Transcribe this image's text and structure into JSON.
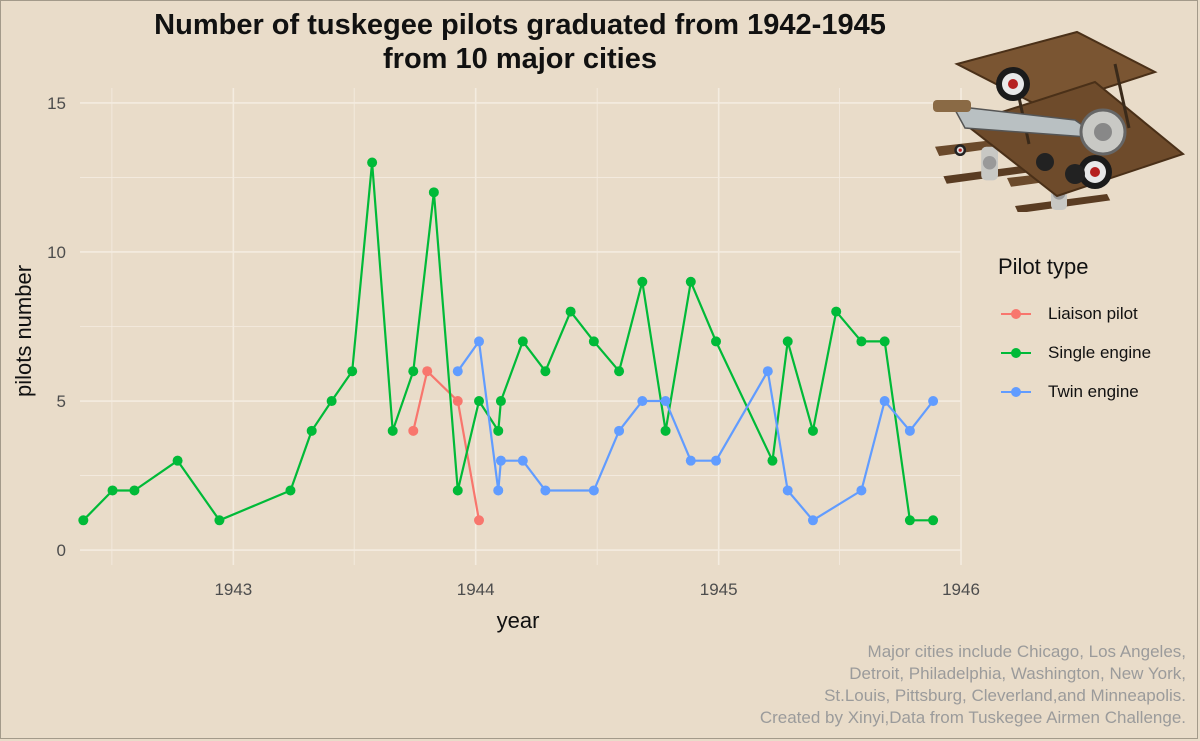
{
  "chart_data": {
    "type": "line",
    "title_lines": [
      "Number of tuskegee pilots graduated from 1942-1945",
      "from 10 major cities"
    ],
    "xlabel": "year",
    "ylabel": "pilots number",
    "xlim": [
      "1942-05-15",
      "1946-01-01"
    ],
    "ylim": [
      -0.5,
      15.5
    ],
    "x_ticks": [
      "1943",
      "1944",
      "1945",
      "1946"
    ],
    "y_ticks": [
      0,
      5,
      10,
      15
    ],
    "grid": true,
    "legend": {
      "title": "Pilot type",
      "placement": "right"
    },
    "series": [
      {
        "name": "Liaison pilot",
        "color": "#F8766D",
        "points": [
          [
            "1943-09-29",
            4
          ],
          [
            "1943-10-20",
            6
          ],
          [
            "1943-12-05",
            5
          ],
          [
            "1944-01-06",
            1
          ]
        ]
      },
      {
        "name": "Single engine",
        "color": "#00BA38",
        "points": [
          [
            "1942-05-20",
            1
          ],
          [
            "1942-07-03",
            2
          ],
          [
            "1942-08-05",
            2
          ],
          [
            "1942-10-09",
            3
          ],
          [
            "1942-12-11",
            1
          ],
          [
            "1943-03-28",
            2
          ],
          [
            "1943-04-29",
            4
          ],
          [
            "1943-05-29",
            5
          ],
          [
            "1943-06-29",
            6
          ],
          [
            "1943-07-29",
            13
          ],
          [
            "1943-08-29",
            4
          ],
          [
            "1943-09-29",
            6
          ],
          [
            "1943-10-30",
            12
          ],
          [
            "1943-12-05",
            2
          ],
          [
            "1944-01-06",
            5
          ],
          [
            "1944-02-04",
            4
          ],
          [
            "1944-02-08",
            5
          ],
          [
            "1944-03-12",
            7
          ],
          [
            "1944-04-15",
            6
          ],
          [
            "1944-05-23",
            8
          ],
          [
            "1944-06-27",
            7
          ],
          [
            "1944-08-04",
            6
          ],
          [
            "1944-09-08",
            9
          ],
          [
            "1944-10-13",
            4
          ],
          [
            "1944-11-20",
            9
          ],
          [
            "1944-12-28",
            7
          ],
          [
            "1945-03-23",
            3
          ],
          [
            "1945-04-15",
            7
          ],
          [
            "1945-05-23",
            4
          ],
          [
            "1945-06-27",
            8
          ],
          [
            "1945-08-04",
            7
          ],
          [
            "1945-09-08",
            7
          ],
          [
            "1945-10-16",
            1
          ],
          [
            "1945-11-20",
            1
          ]
        ]
      },
      {
        "name": "Twin engine",
        "color": "#619CFF",
        "points": [
          [
            "1943-12-05",
            6
          ],
          [
            "1944-01-06",
            7
          ],
          [
            "1944-02-04",
            2
          ],
          [
            "1944-02-08",
            3
          ],
          [
            "1944-03-12",
            3
          ],
          [
            "1944-04-15",
            2
          ],
          [
            "1944-06-27",
            2
          ],
          [
            "1944-08-04",
            4
          ],
          [
            "1944-09-08",
            5
          ],
          [
            "1944-10-13",
            5
          ],
          [
            "1944-11-20",
            3
          ],
          [
            "1944-12-28",
            3
          ],
          [
            "1945-03-16",
            6
          ],
          [
            "1945-04-15",
            2
          ],
          [
            "1945-05-23",
            1
          ],
          [
            "1945-08-04",
            2
          ],
          [
            "1945-09-08",
            5
          ],
          [
            "1945-10-16",
            4
          ],
          [
            "1945-11-20",
            5
          ]
        ]
      }
    ]
  },
  "caption_lines": [
    "Major cities include Chicago, Los Angeles,",
    "Detroit, Philadelphia, Washington, New York,",
    "St.Louis, Pittsburg, Cleverland,and Minneapolis.",
    "Created by Xinyi,Data from Tuskegee Airmen Challenge."
  ],
  "image": {
    "icon": "biplane-icon"
  },
  "colors": {
    "background": "#e9dcc9",
    "grid": "#f4ece0",
    "text": "#111111"
  }
}
